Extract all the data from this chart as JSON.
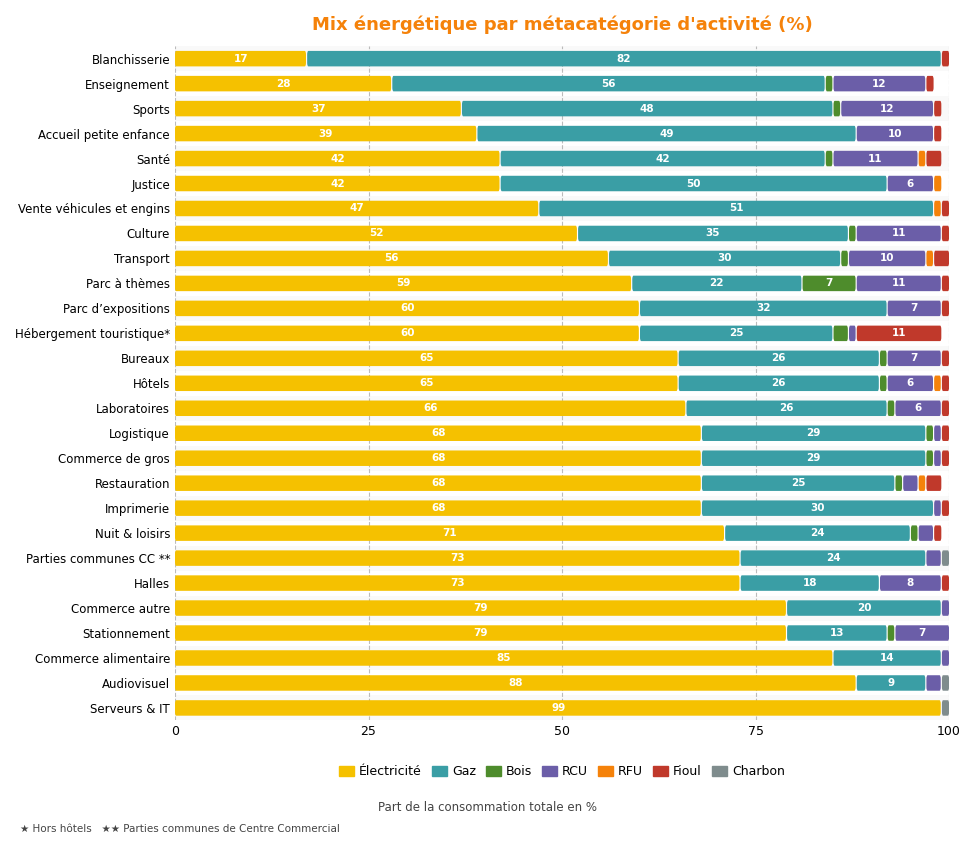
{
  "title": "Mix énergétique par métacégorie d’activité (%)",
  "title_color": "#F5820A",
  "categories": [
    "Blanchisserie",
    "Enseignement",
    "Sports",
    "Accueil petite enfance",
    "Santé",
    "Justice",
    "Vente véhicules et engins",
    "Culture",
    "Transport",
    "Parc à thèmes",
    "Parc d’expositions",
    "Hébergement touristique*",
    "Bureaux",
    "Hôtels",
    "Laboratoires",
    "Logistique",
    "Commerce de gros",
    "Restauration",
    "Imprimerie",
    "Nuit & loisirs",
    "Parties communes CC **",
    "Halles",
    "Commerce autre",
    "Stationnement",
    "Commerce alimentaire",
    "Audiovisuel",
    "Serveurs & IT"
  ],
  "data": [
    {
      "elec": 17,
      "gaz": 82,
      "bois": 0,
      "rcu": 0,
      "rfu": 0,
      "fioul": 1,
      "charbon": 0
    },
    {
      "elec": 28,
      "gaz": 56,
      "bois": 1,
      "rcu": 12,
      "rfu": 0,
      "fioul": 1,
      "charbon": 0
    },
    {
      "elec": 37,
      "gaz": 48,
      "bois": 1,
      "rcu": 12,
      "rfu": 0,
      "fioul": 1,
      "charbon": 0
    },
    {
      "elec": 39,
      "gaz": 49,
      "bois": 0,
      "rcu": 10,
      "rfu": 0,
      "fioul": 1,
      "charbon": 0
    },
    {
      "elec": 42,
      "gaz": 42,
      "bois": 1,
      "rcu": 11,
      "rfu": 1,
      "fioul": 2,
      "charbon": 0
    },
    {
      "elec": 42,
      "gaz": 50,
      "bois": 0,
      "rcu": 6,
      "rfu": 1,
      "fioul": 0,
      "charbon": 0
    },
    {
      "elec": 47,
      "gaz": 51,
      "bois": 0,
      "rcu": 0,
      "rfu": 1,
      "fioul": 1,
      "charbon": 0
    },
    {
      "elec": 52,
      "gaz": 35,
      "bois": 1,
      "rcu": 11,
      "rfu": 0,
      "fioul": 1,
      "charbon": 0
    },
    {
      "elec": 56,
      "gaz": 30,
      "bois": 1,
      "rcu": 10,
      "rfu": 1,
      "fioul": 2,
      "charbon": 0
    },
    {
      "elec": 59,
      "gaz": 22,
      "bois": 7,
      "rcu": 11,
      "rfu": 0,
      "fioul": 1,
      "charbon": 0
    },
    {
      "elec": 60,
      "gaz": 32,
      "bois": 0,
      "rcu": 7,
      "rfu": 0,
      "fioul": 1,
      "charbon": 0
    },
    {
      "elec": 60,
      "gaz": 25,
      "bois": 2,
      "rcu": 1,
      "rfu": 0,
      "fioul": 11,
      "charbon": 0
    },
    {
      "elec": 65,
      "gaz": 26,
      "bois": 1,
      "rcu": 7,
      "rfu": 0,
      "fioul": 1,
      "charbon": 0
    },
    {
      "elec": 65,
      "gaz": 26,
      "bois": 1,
      "rcu": 6,
      "rfu": 1,
      "fioul": 1,
      "charbon": 0
    },
    {
      "elec": 66,
      "gaz": 26,
      "bois": 1,
      "rcu": 6,
      "rfu": 0,
      "fioul": 1,
      "charbon": 0
    },
    {
      "elec": 68,
      "gaz": 29,
      "bois": 1,
      "rcu": 1,
      "rfu": 0,
      "fioul": 1,
      "charbon": 0
    },
    {
      "elec": 68,
      "gaz": 29,
      "bois": 1,
      "rcu": 1,
      "rfu": 0,
      "fioul": 1,
      "charbon": 0
    },
    {
      "elec": 68,
      "gaz": 25,
      "bois": 1,
      "rcu": 2,
      "rfu": 1,
      "fioul": 2,
      "charbon": 0
    },
    {
      "elec": 68,
      "gaz": 30,
      "bois": 0,
      "rcu": 1,
      "rfu": 0,
      "fioul": 1,
      "charbon": 0
    },
    {
      "elec": 71,
      "gaz": 24,
      "bois": 1,
      "rcu": 2,
      "rfu": 0,
      "fioul": 1,
      "charbon": 0
    },
    {
      "elec": 73,
      "gaz": 24,
      "bois": 0,
      "rcu": 2,
      "rfu": 0,
      "fioul": 0,
      "charbon": 1
    },
    {
      "elec": 73,
      "gaz": 18,
      "bois": 0,
      "rcu": 8,
      "rfu": 0,
      "fioul": 1,
      "charbon": 0
    },
    {
      "elec": 79,
      "gaz": 20,
      "bois": 0,
      "rcu": 1,
      "rfu": 0,
      "fioul": 0,
      "charbon": 0
    },
    {
      "elec": 79,
      "gaz": 13,
      "bois": 1,
      "rcu": 7,
      "rfu": 0,
      "fioul": 0,
      "charbon": 0
    },
    {
      "elec": 85,
      "gaz": 14,
      "bois": 0,
      "rcu": 1,
      "rfu": 0,
      "fioul": 0,
      "charbon": 0
    },
    {
      "elec": 88,
      "gaz": 9,
      "bois": 0,
      "rcu": 2,
      "rfu": 0,
      "fioul": 0,
      "charbon": 1
    },
    {
      "elec": 99,
      "gaz": 0,
      "bois": 0,
      "rcu": 0,
      "rfu": 0,
      "fioul": 0,
      "charbon": 1
    }
  ],
  "colors": {
    "elec": "#F5C100",
    "gaz": "#3A9EA5",
    "bois": "#4E8C2C",
    "rcu": "#6B5EA8",
    "rfu": "#F5820A",
    "fioul": "#C0392B",
    "charbon": "#7F8C8D"
  },
  "legend_labels": {
    "elec": "Électricité",
    "gaz": "Gaz",
    "bois": "Bois",
    "rcu": "RCU",
    "rfu": "RFU",
    "fioul": "Fioul",
    "charbon": "Charbon"
  },
  "background_color": "#FFFFFF",
  "xlim": [
    0,
    100
  ]
}
